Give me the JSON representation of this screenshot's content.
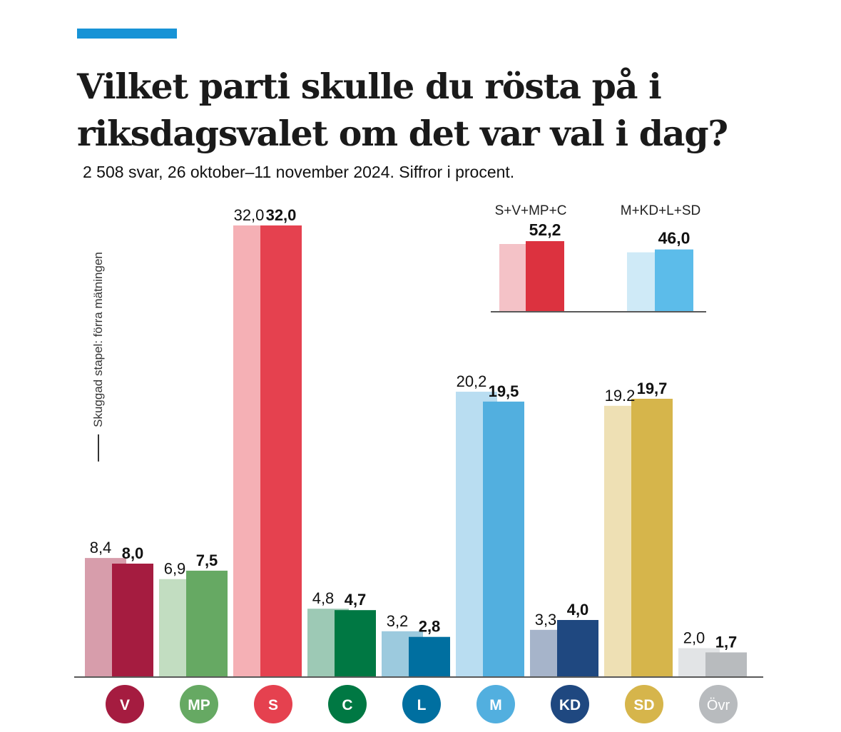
{
  "colors": {
    "accent": "#1793d6"
  },
  "header": {
    "title": "Vilket parti skulle du rösta på i riksdagsvalet om det var val i dag?",
    "subtitle": "2 508 svar, 26 oktober–11 november 2024. Siffror i procent.",
    "side_note": "Skuggad stapel: förra mätningen"
  },
  "chart_data": [
    {
      "type": "bar",
      "title": "Vilket parti skulle du rösta på i riksdagsvalet om det var val i dag?",
      "subtitle": "2 508 svar, 26 oktober–11 november 2024. Siffror i procent.",
      "categories": [
        "V",
        "MP",
        "S",
        "C",
        "L",
        "M",
        "KD",
        "SD",
        "Övr"
      ],
      "series": [
        {
          "role": "previous",
          "values": [
            8.4,
            6.9,
            32.0,
            4.8,
            3.2,
            20.2,
            3.3,
            19.2,
            2.0
          ],
          "labels": [
            "8,4",
            "6,9",
            "32,0",
            "4,8",
            "3,2",
            "20,2",
            "3,3",
            "19.2",
            "2,0"
          ]
        },
        {
          "role": "current",
          "values": [
            8.0,
            7.5,
            32.0,
            4.7,
            2.8,
            19.5,
            4.0,
            19.7,
            1.7
          ],
          "labels": [
            "8,0",
            "7,5",
            "32,0",
            "4,7",
            "2,8",
            "19,5",
            "4,0",
            "19,7",
            "1,7"
          ]
        }
      ],
      "colors_current": [
        "#a51c40",
        "#66a963",
        "#e5414f",
        "#007843",
        "#006fa0",
        "#52afdf",
        "#1f4880",
        "#d6b54b",
        "#b8bbbe"
      ],
      "colors_previous": [
        "#d79dab",
        "#c2ddc1",
        "#f5b0b5",
        "#9dc9b5",
        "#9ccade",
        "#b9ddf1",
        "#a6b4ca",
        "#eee0b4",
        "#e2e4e6"
      ],
      "ylim": [
        0,
        32
      ],
      "grid": false,
      "legend": "none"
    },
    {
      "type": "bar",
      "categories": [
        "S+V+MP+C",
        "M+KD+L+SD"
      ],
      "series": [
        {
          "role": "previous",
          "values": [
            52.2,
            46.0
          ]
        },
        {
          "role": "current",
          "values": [
            52.2,
            46.0
          ],
          "labels": [
            "52,2",
            "46,0"
          ]
        }
      ],
      "colors_current": [
        "#dc323f",
        "#5cbcea"
      ],
      "colors_previous": [
        "#f4c2c7",
        "#cfeaf7"
      ],
      "ylim": [
        0,
        52.2
      ],
      "grid": false,
      "legend": "none"
    }
  ]
}
